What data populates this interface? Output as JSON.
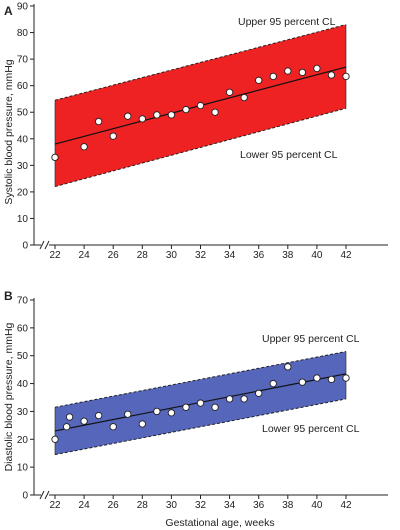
{
  "chart_data": [
    {
      "type": "scatter",
      "panel_label": "A",
      "title": "",
      "ylabel": "Systolic blood pressure, mmHg",
      "xlabel": "",
      "xlim": [
        22,
        42
      ],
      "ylim": [
        0,
        90
      ],
      "xticks": [
        22,
        24,
        26,
        28,
        30,
        32,
        34,
        36,
        38,
        40,
        42
      ],
      "yticks": [
        0,
        10,
        20,
        30,
        40,
        50,
        60,
        70,
        80,
        90
      ],
      "grid": false,
      "axis_break": "//",
      "band_color": "#ee2222",
      "upper_label": "Upper 95 percent CL",
      "lower_label": "Lower 95 percent CL",
      "upper_ci": [
        [
          22,
          54.5
        ],
        [
          42,
          83
        ]
      ],
      "lower_ci": [
        [
          22,
          22
        ],
        [
          42,
          51.5
        ]
      ],
      "regression": [
        [
          22,
          38
        ],
        [
          42,
          67
        ]
      ],
      "points": [
        {
          "x": 22,
          "y": 33
        },
        {
          "x": 24,
          "y": 37
        },
        {
          "x": 25,
          "y": 46.5
        },
        {
          "x": 26,
          "y": 41
        },
        {
          "x": 27,
          "y": 48.5
        },
        {
          "x": 28,
          "y": 47.5
        },
        {
          "x": 29,
          "y": 49
        },
        {
          "x": 30,
          "y": 49
        },
        {
          "x": 31,
          "y": 51
        },
        {
          "x": 32,
          "y": 52.5
        },
        {
          "x": 33,
          "y": 50
        },
        {
          "x": 34,
          "y": 57.5
        },
        {
          "x": 35,
          "y": 55.5
        },
        {
          "x": 36,
          "y": 62
        },
        {
          "x": 37,
          "y": 63.5
        },
        {
          "x": 38,
          "y": 65.5
        },
        {
          "x": 39,
          "y": 65
        },
        {
          "x": 40,
          "y": 66.5
        },
        {
          "x": 41,
          "y": 64
        },
        {
          "x": 42,
          "y": 63.5
        }
      ]
    },
    {
      "type": "scatter",
      "panel_label": "B",
      "title": "",
      "ylabel": "Diastolic blood pressure, mmHg",
      "xlabel": "Gestational age, weeks",
      "xlim": [
        22,
        42
      ],
      "ylim": [
        0,
        70
      ],
      "xticks": [
        22,
        24,
        26,
        28,
        30,
        32,
        34,
        36,
        38,
        40,
        42
      ],
      "yticks": [
        0,
        10,
        20,
        30,
        40,
        50,
        60,
        70
      ],
      "grid": false,
      "axis_break": "//",
      "band_color": "#5566bb",
      "upper_label": "Upper 95 percent CL",
      "lower_label": "Lower 95 percent CL",
      "upper_ci": [
        [
          22,
          31.5
        ],
        [
          42,
          51.5
        ]
      ],
      "lower_ci": [
        [
          22,
          14.5
        ],
        [
          42,
          34.5
        ]
      ],
      "regression": [
        [
          22,
          23
        ],
        [
          42,
          43.5
        ]
      ],
      "points": [
        {
          "x": 22,
          "y": 20
        },
        {
          "x": 22.8,
          "y": 24.5
        },
        {
          "x": 23,
          "y": 28
        },
        {
          "x": 24,
          "y": 26.5
        },
        {
          "x": 25,
          "y": 28.5
        },
        {
          "x": 26,
          "y": 24.5
        },
        {
          "x": 27,
          "y": 29
        },
        {
          "x": 28,
          "y": 25.5
        },
        {
          "x": 29,
          "y": 30
        },
        {
          "x": 30,
          "y": 29.5
        },
        {
          "x": 31,
          "y": 31.5
        },
        {
          "x": 32,
          "y": 33
        },
        {
          "x": 33,
          "y": 31.5
        },
        {
          "x": 34,
          "y": 34.5
        },
        {
          "x": 35,
          "y": 34.5
        },
        {
          "x": 36,
          "y": 36.5
        },
        {
          "x": 37,
          "y": 40
        },
        {
          "x": 38,
          "y": 46
        },
        {
          "x": 39,
          "y": 40.5
        },
        {
          "x": 40,
          "y": 42
        },
        {
          "x": 41,
          "y": 41.5
        },
        {
          "x": 42,
          "y": 42
        }
      ]
    }
  ]
}
